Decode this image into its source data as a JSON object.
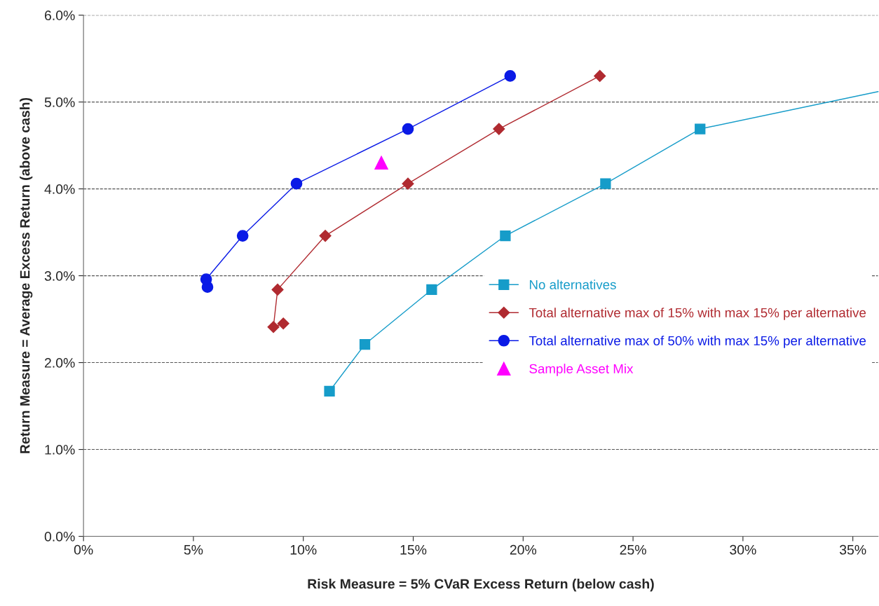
{
  "chart_data": {
    "type": "scatter",
    "xlabel": "Risk Measure = 5% CVaR Excess Return (below cash)",
    "ylabel": "Return Measure = Average Excess Return (above cash)",
    "xlim": [
      0,
      36.15
    ],
    "ylim": [
      0,
      6
    ],
    "xticks": [
      {
        "value": 0,
        "label": "0%"
      },
      {
        "value": 5,
        "label": "5%"
      },
      {
        "value": 10,
        "label": "10%"
      },
      {
        "value": 15,
        "label": "15%"
      },
      {
        "value": 20,
        "label": "20%"
      },
      {
        "value": 25,
        "label": "25%"
      },
      {
        "value": 30,
        "label": "30%"
      },
      {
        "value": 35,
        "label": "35%"
      }
    ],
    "yticks": [
      {
        "value": 0,
        "label": "0.0%"
      },
      {
        "value": 1,
        "label": "1.0%"
      },
      {
        "value": 2,
        "label": "2.0%"
      },
      {
        "value": 3,
        "label": "3.0%"
      },
      {
        "value": 4,
        "label": "4.0%"
      },
      {
        "value": 5,
        "label": "5.0%"
      },
      {
        "value": 6,
        "label": "6.0%"
      }
    ],
    "grid": "y",
    "legend": "right",
    "series": [
      {
        "name": "No alternatives",
        "type": "line",
        "marker": "square",
        "color": "#169cc9",
        "x": [
          11.19,
          12.8,
          15.84,
          19.19,
          23.75,
          28.05
        ],
        "values": [
          1.67,
          2.21,
          2.84,
          3.46,
          4.06,
          4.69
        ]
      },
      {
        "type": "line",
        "marker": "none",
        "color": "#169cc9",
        "x": [
          28.05,
          36.15
        ],
        "values": [
          4.69,
          5.12
        ]
      },
      {
        "name": "Total alternative max of 15% with max 15% per alternative",
        "type": "line",
        "marker": "diamond",
        "color": "#b02a30",
        "x": [
          9.09,
          8.64,
          8.83,
          11.0,
          14.76,
          18.9,
          23.49
        ],
        "values": [
          2.45,
          2.41,
          2.84,
          3.46,
          4.06,
          4.69,
          5.3
        ]
      },
      {
        "name": "Total alternative max of 50% with max 15% per alternative",
        "type": "line",
        "marker": "circle",
        "color": "#0a1ae6",
        "x": [
          5.64,
          5.58,
          7.24,
          9.69,
          14.76,
          19.41
        ],
        "values": [
          2.87,
          2.96,
          3.46,
          4.06,
          4.69,
          5.3
        ]
      },
      {
        "name": "Sample Asset Mix",
        "marker": "triangle",
        "color": "#ff00ff",
        "x": [
          13.55
        ],
        "values": [
          4.3
        ]
      }
    ]
  }
}
